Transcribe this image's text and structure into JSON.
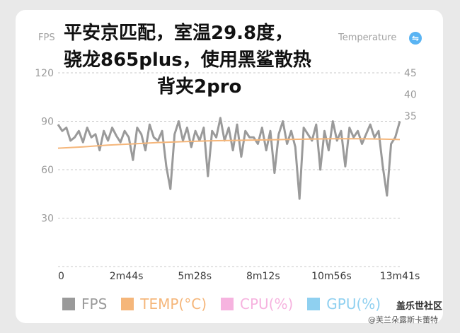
{
  "overlay": {
    "line1": "平安京匹配，室温29.8度，",
    "line2": "骁龙865plus，使用黑鲨散热",
    "line3": "背夹2pro"
  },
  "headers": {
    "left": "FPS",
    "right": "Temperature",
    "swap_icon": "swap-icon"
  },
  "watermark": {
    "brand": "盖乐世社区",
    "user": "@芙兰朵露斯卡蕾特"
  },
  "colors": {
    "fps": "#9a9a9a",
    "temp": "#f5b67a",
    "cpu": "#f6b3df",
    "gpu": "#8fd0f0"
  },
  "chart_data": {
    "type": "line",
    "x_ticks": [
      "0",
      "2m44s",
      "5m28s",
      "8m12s",
      "10m56s",
      "13m41s"
    ],
    "x_range_seconds": [
      0,
      821
    ],
    "y_left": {
      "ticks": [
        "30",
        "60",
        "90",
        "120"
      ],
      "range": [
        0,
        120
      ]
    },
    "y_right": {
      "ticks": [
        "35",
        "40",
        "45"
      ],
      "range": [
        0,
        45
      ]
    },
    "legend": [
      {
        "name": "FPS",
        "color": "#9a9a9a"
      },
      {
        "name": "TEMP(°C)",
        "color": "#f5b67a"
      },
      {
        "name": "CPU(%)",
        "color": "#f6b3df"
      },
      {
        "name": "GPU(%)",
        "color": "#8fd0f0"
      }
    ],
    "series": [
      {
        "name": "FPS",
        "x": [
          0,
          10,
          20,
          30,
          40,
          50,
          60,
          70,
          80,
          90,
          100,
          110,
          120,
          130,
          140,
          150,
          160,
          170,
          180,
          190,
          200,
          210,
          220,
          230,
          240,
          250,
          260,
          270,
          280,
          290,
          300,
          310,
          320,
          330,
          340,
          350,
          360,
          370,
          380,
          390,
          400,
          410,
          420,
          430,
          440,
          450,
          460,
          470,
          480,
          490,
          500,
          510,
          520,
          530,
          540,
          550,
          560,
          570,
          580,
          590,
          600,
          610,
          620,
          630,
          640,
          650,
          660,
          670,
          680,
          690,
          700,
          710,
          720,
          730,
          740,
          750,
          760,
          770,
          780,
          790,
          800,
          810,
          821
        ],
        "values": [
          88,
          84,
          86,
          78,
          80,
          84,
          77,
          86,
          80,
          82,
          72,
          84,
          78,
          86,
          81,
          77,
          84,
          80,
          66,
          86,
          82,
          72,
          88,
          80,
          78,
          84,
          62,
          48,
          82,
          90,
          78,
          86,
          74,
          84,
          78,
          86,
          56,
          84,
          80,
          92,
          78,
          86,
          72,
          88,
          68,
          84,
          80,
          80,
          76,
          86,
          72,
          84,
          58,
          82,
          90,
          76,
          84,
          74,
          42,
          86,
          82,
          78,
          88,
          60,
          84,
          72,
          90,
          78,
          84,
          62,
          86,
          80,
          84,
          76,
          82,
          88,
          80,
          84,
          62,
          44,
          76,
          80,
          90
        ]
      },
      {
        "name": "TEMP(°C)",
        "x": [
          0,
          60,
          120,
          180,
          240,
          300,
          360,
          420,
          480,
          540,
          600,
          660,
          720,
          780,
          821
        ],
        "values": [
          27.5,
          27.8,
          28.2,
          28.5,
          28.8,
          29.0,
          29.2,
          29.3,
          29.4,
          29.5,
          29.6,
          29.7,
          29.7,
          29.6,
          29.5
        ]
      }
    ]
  }
}
